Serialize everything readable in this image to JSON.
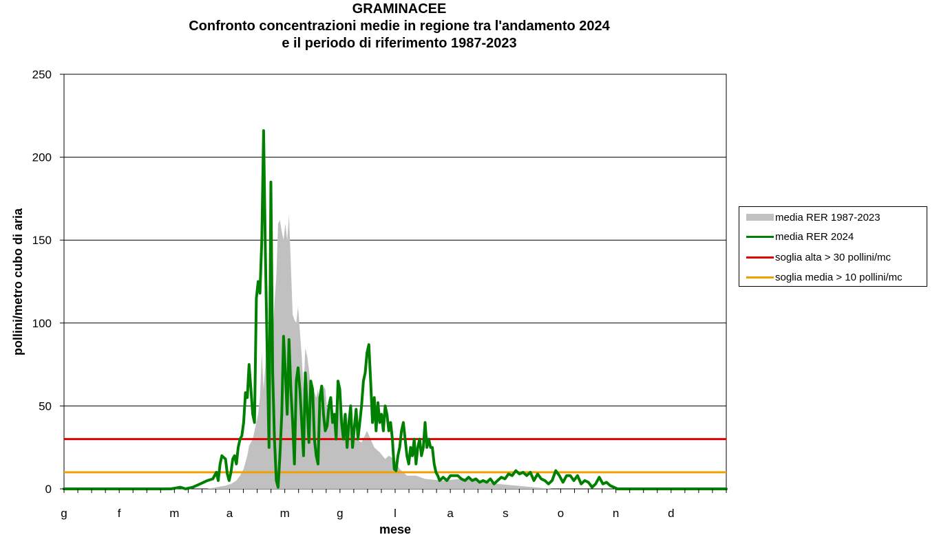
{
  "chart_data": {
    "type": "area",
    "title": "GRAMINACEE",
    "subtitle_line1": "Confronto concentrazioni medie in regione tra l'andamento 2024",
    "subtitle_line2": "e il periodo di riferimento 1987-2023",
    "xlabel": "mese",
    "ylabel": "pollini/metro cubo di aria",
    "ylim": [
      0,
      250
    ],
    "yticks": [
      0,
      50,
      100,
      150,
      200,
      250
    ],
    "xlim": [
      1,
      366
    ],
    "month_labels": [
      "g",
      "f",
      "m",
      "a",
      "m",
      "g",
      "l",
      "a",
      "s",
      "o",
      "n",
      "d"
    ],
    "grid": "horizontal",
    "legend_position": "right",
    "legend": [
      {
        "label": "media RER 1987-2023",
        "color": "#c0c0c0"
      },
      {
        "label": "media RER 2024",
        "color": "#008000"
      },
      {
        "label": "soglia alta > 30 pollini/mc",
        "color": "#e00000"
      },
      {
        "label": "soglia media > 10 pollini/mc",
        "color": "#f0a000"
      }
    ],
    "thresholds": [
      {
        "name": "soglia alta > 30 pollini/mc",
        "value": 30,
        "color": "#e00000"
      },
      {
        "name": "soglia media > 10 pollini/mc",
        "value": 10,
        "color": "#f0a000"
      }
    ],
    "series": [
      {
        "name": "media RER 1987-2023",
        "kind": "area",
        "color": "#c0c0c0",
        "points": [
          [
            1,
            0
          ],
          [
            80,
            0
          ],
          [
            85,
            1
          ],
          [
            90,
            2
          ],
          [
            93,
            3
          ],
          [
            96,
            5
          ],
          [
            98,
            8
          ],
          [
            100,
            12
          ],
          [
            102,
            20
          ],
          [
            103,
            26
          ],
          [
            105,
            30
          ],
          [
            107,
            40
          ],
          [
            108,
            45
          ],
          [
            109,
            55
          ],
          [
            110,
            82
          ],
          [
            111,
            60
          ],
          [
            112,
            75
          ],
          [
            113,
            100
          ],
          [
            114,
            72
          ],
          [
            115,
            98
          ],
          [
            116,
            92
          ],
          [
            117,
            112
          ],
          [
            118,
            128
          ],
          [
            119,
            160
          ],
          [
            120,
            162
          ],
          [
            121,
            155
          ],
          [
            122,
            150
          ],
          [
            123,
            160
          ],
          [
            124,
            150
          ],
          [
            125,
            165
          ],
          [
            126,
            135
          ],
          [
            127,
            105
          ],
          [
            128,
            102
          ],
          [
            129,
            100
          ],
          [
            130,
            110
          ],
          [
            131,
            95
          ],
          [
            132,
            80
          ],
          [
            133,
            60
          ],
          [
            134,
            85
          ],
          [
            135,
            80
          ],
          [
            136,
            72
          ],
          [
            137,
            60
          ],
          [
            138,
            62
          ],
          [
            139,
            58
          ],
          [
            140,
            55
          ],
          [
            141,
            60
          ],
          [
            142,
            45
          ],
          [
            143,
            52
          ],
          [
            144,
            62
          ],
          [
            145,
            60
          ],
          [
            146,
            48
          ],
          [
            147,
            55
          ],
          [
            148,
            45
          ],
          [
            149,
            47
          ],
          [
            150,
            35
          ],
          [
            151,
            55
          ],
          [
            152,
            60
          ],
          [
            153,
            45
          ],
          [
            154,
            35
          ],
          [
            155,
            45
          ],
          [
            156,
            40
          ],
          [
            157,
            30
          ],
          [
            158,
            42
          ],
          [
            160,
            38
          ],
          [
            162,
            30
          ],
          [
            165,
            28
          ],
          [
            168,
            35
          ],
          [
            170,
            30
          ],
          [
            172,
            25
          ],
          [
            175,
            22
          ],
          [
            178,
            18
          ],
          [
            180,
            20
          ],
          [
            183,
            18
          ],
          [
            186,
            12
          ],
          [
            190,
            8
          ],
          [
            195,
            8
          ],
          [
            200,
            6
          ],
          [
            210,
            5
          ],
          [
            220,
            6
          ],
          [
            230,
            5
          ],
          [
            240,
            3
          ],
          [
            250,
            2
          ],
          [
            260,
            1
          ],
          [
            270,
            0
          ],
          [
            366,
            0
          ]
        ]
      },
      {
        "name": "media RER 2024",
        "kind": "line",
        "color": "#008000",
        "points": [
          [
            1,
            0
          ],
          [
            60,
            0
          ],
          [
            65,
            1
          ],
          [
            68,
            0
          ],
          [
            72,
            1
          ],
          [
            76,
            3
          ],
          [
            80,
            5
          ],
          [
            83,
            6
          ],
          [
            85,
            10
          ],
          [
            86,
            5
          ],
          [
            87,
            15
          ],
          [
            88,
            20
          ],
          [
            89,
            19
          ],
          [
            90,
            18
          ],
          [
            91,
            9
          ],
          [
            92,
            5
          ],
          [
            93,
            10
          ],
          [
            94,
            18
          ],
          [
            95,
            20
          ],
          [
            96,
            15
          ],
          [
            97,
            25
          ],
          [
            98,
            30
          ],
          [
            99,
            32
          ],
          [
            100,
            40
          ],
          [
            101,
            58
          ],
          [
            102,
            55
          ],
          [
            103,
            75
          ],
          [
            104,
            60
          ],
          [
            105,
            45
          ],
          [
            106,
            40
          ],
          [
            107,
            115
          ],
          [
            108,
            125
          ],
          [
            109,
            118
          ],
          [
            110,
            150
          ],
          [
            111,
            216
          ],
          [
            112,
            140
          ],
          [
            113,
            80
          ],
          [
            114,
            25
          ],
          [
            115,
            185
          ],
          [
            116,
            70
          ],
          [
            117,
            30
          ],
          [
            118,
            5
          ],
          [
            119,
            1
          ],
          [
            120,
            20
          ],
          [
            121,
            45
          ],
          [
            122,
            92
          ],
          [
            123,
            70
          ],
          [
            124,
            45
          ],
          [
            125,
            90
          ],
          [
            126,
            60
          ],
          [
            127,
            40
          ],
          [
            128,
            15
          ],
          [
            129,
            65
          ],
          [
            130,
            73
          ],
          [
            131,
            60
          ],
          [
            132,
            40
          ],
          [
            133,
            20
          ],
          [
            134,
            70
          ],
          [
            135,
            48
          ],
          [
            136,
            28
          ],
          [
            137,
            65
          ],
          [
            138,
            60
          ],
          [
            139,
            30
          ],
          [
            140,
            20
          ],
          [
            141,
            15
          ],
          [
            142,
            55
          ],
          [
            143,
            62
          ],
          [
            144,
            45
          ],
          [
            145,
            35
          ],
          [
            146,
            38
          ],
          [
            147,
            50
          ],
          [
            148,
            55
          ],
          [
            149,
            40
          ],
          [
            150,
            45
          ],
          [
            151,
            30
          ],
          [
            152,
            65
          ],
          [
            153,
            60
          ],
          [
            154,
            40
          ],
          [
            155,
            30
          ],
          [
            156,
            45
          ],
          [
            157,
            25
          ],
          [
            158,
            40
          ],
          [
            159,
            50
          ],
          [
            160,
            25
          ],
          [
            161,
            37
          ],
          [
            162,
            48
          ],
          [
            163,
            30
          ],
          [
            164,
            40
          ],
          [
            165,
            50
          ],
          [
            166,
            65
          ],
          [
            167,
            70
          ],
          [
            168,
            82
          ],
          [
            169,
            87
          ],
          [
            170,
            65
          ],
          [
            171,
            40
          ],
          [
            172,
            55
          ],
          [
            173,
            35
          ],
          [
            174,
            52
          ],
          [
            175,
            40
          ],
          [
            176,
            45
          ],
          [
            177,
            35
          ],
          [
            178,
            50
          ],
          [
            179,
            45
          ],
          [
            180,
            35
          ],
          [
            181,
            40
          ],
          [
            182,
            30
          ],
          [
            183,
            12
          ],
          [
            184,
            11
          ],
          [
            185,
            20
          ],
          [
            186,
            25
          ],
          [
            187,
            35
          ],
          [
            188,
            40
          ],
          [
            189,
            30
          ],
          [
            190,
            20
          ],
          [
            191,
            15
          ],
          [
            192,
            25
          ],
          [
            193,
            20
          ],
          [
            194,
            30
          ],
          [
            195,
            15
          ],
          [
            196,
            25
          ],
          [
            197,
            30
          ],
          [
            198,
            20
          ],
          [
            199,
            25
          ],
          [
            200,
            40
          ],
          [
            201,
            25
          ],
          [
            202,
            30
          ],
          [
            203,
            25
          ],
          [
            204,
            25
          ],
          [
            205,
            15
          ],
          [
            206,
            10
          ],
          [
            207,
            8
          ],
          [
            208,
            5
          ],
          [
            210,
            7
          ],
          [
            212,
            5
          ],
          [
            214,
            8
          ],
          [
            218,
            8
          ],
          [
            220,
            6
          ],
          [
            222,
            5
          ],
          [
            224,
            7
          ],
          [
            226,
            5
          ],
          [
            228,
            6
          ],
          [
            230,
            4
          ],
          [
            232,
            5
          ],
          [
            234,
            4
          ],
          [
            236,
            6
          ],
          [
            238,
            3
          ],
          [
            240,
            5
          ],
          [
            242,
            7
          ],
          [
            244,
            6
          ],
          [
            246,
            9
          ],
          [
            248,
            8
          ],
          [
            250,
            11
          ],
          [
            252,
            9
          ],
          [
            254,
            10
          ],
          [
            256,
            8
          ],
          [
            258,
            10
          ],
          [
            260,
            5
          ],
          [
            262,
            9
          ],
          [
            264,
            6
          ],
          [
            266,
            5
          ],
          [
            268,
            3
          ],
          [
            270,
            5
          ],
          [
            272,
            11
          ],
          [
            274,
            8
          ],
          [
            276,
            4
          ],
          [
            278,
            8
          ],
          [
            280,
            8
          ],
          [
            282,
            5
          ],
          [
            284,
            8
          ],
          [
            286,
            3
          ],
          [
            288,
            5
          ],
          [
            290,
            4
          ],
          [
            292,
            1
          ],
          [
            294,
            3
          ],
          [
            296,
            7
          ],
          [
            298,
            3
          ],
          [
            300,
            4
          ],
          [
            302,
            2
          ],
          [
            304,
            1
          ],
          [
            306,
            0
          ],
          [
            366,
            0
          ]
        ]
      }
    ]
  }
}
